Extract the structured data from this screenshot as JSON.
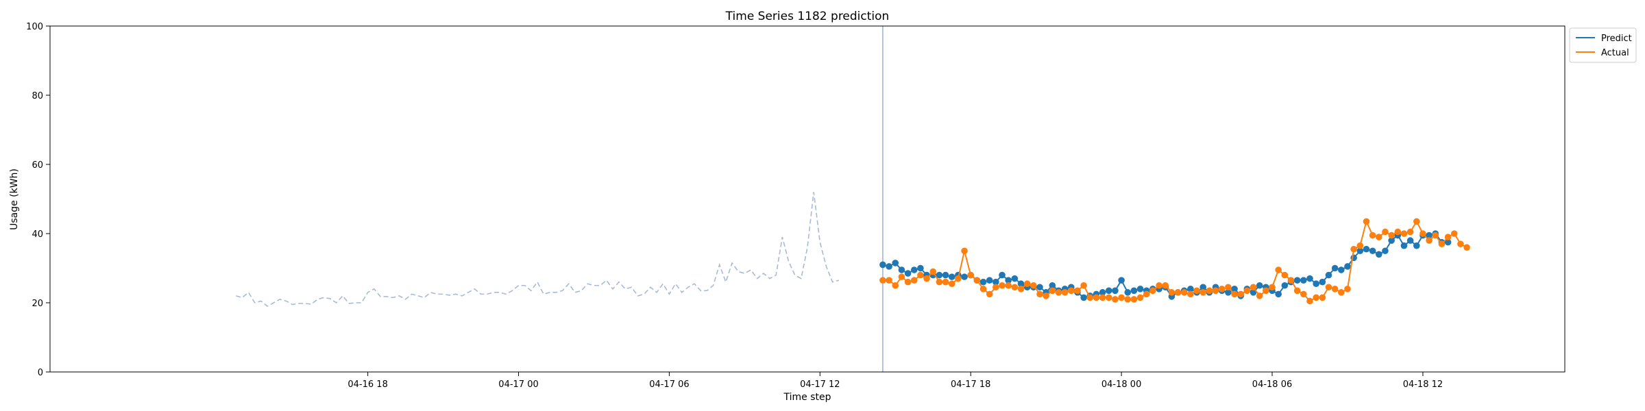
{
  "chart_data": {
    "type": "line",
    "title": "Time Series 1182 prediction",
    "xlabel": "Time step",
    "ylabel": "Usage (kWh)",
    "ylim": [
      0,
      100
    ],
    "yticks": [
      0,
      20,
      40,
      60,
      80,
      100
    ],
    "x_tick_labels": [
      "04-16 18",
      "04-17 00",
      "04-17 06",
      "04-17 12",
      "04-17 18",
      "04-18 00",
      "04-18 06",
      "04-18 12"
    ],
    "grid": false,
    "legend_position": "outside-top-right",
    "forecast_start": "2025-04-17T14:30",
    "history": {
      "x_start": "2025-04-16T12:45",
      "interval_minutes": 15,
      "color": "#a7bad6",
      "values": [
        22.0,
        21.5,
        23.0,
        20.0,
        20.5,
        19.0,
        20.0,
        21.0,
        20.5,
        19.5,
        19.8,
        19.8,
        19.6,
        21.0,
        21.5,
        21.2,
        20.0,
        22.0,
        19.8,
        20.0,
        20.0,
        23.0,
        24.0,
        21.8,
        21.8,
        21.5,
        22.0,
        21.0,
        22.5,
        22.0,
        21.5,
        23.0,
        22.5,
        22.5,
        22.2,
        22.5,
        22.0,
        23.0,
        24.0,
        22.5,
        22.5,
        23.0,
        23.0,
        22.5,
        23.5,
        25.0,
        25.0,
        23.5,
        26.0,
        22.5,
        23.0,
        23.0,
        23.5,
        25.5,
        23.0,
        23.5,
        25.5,
        25.0,
        25.0,
        26.5,
        24.0,
        26.0,
        24.0,
        24.5,
        22.0,
        22.5,
        24.5,
        23.0,
        25.5,
        22.5,
        25.5,
        23.0,
        24.5,
        25.5,
        23.5,
        23.5,
        25.0,
        31.0,
        26.0,
        31.5,
        29.0,
        28.5,
        29.5,
        27.0,
        28.5,
        27.0,
        28.0,
        39.0,
        32.0,
        28.0,
        27.0,
        36.0,
        52.0,
        37.5,
        30.5,
        26.0,
        26.5
      ]
    },
    "series": [
      {
        "name": "Predict",
        "color": "#1f77b4",
        "x_start": "2025-04-17T14:30",
        "interval_minutes": 15,
        "values": [
          31.0,
          30.5,
          31.5,
          29.5,
          28.5,
          29.5,
          30.0,
          28.0,
          28.0,
          28.0,
          28.0,
          27.5,
          28.0,
          27.5,
          28.0,
          26.5,
          26.0,
          26.5,
          26.0,
          28.0,
          26.5,
          27.0,
          25.5,
          24.5,
          24.5,
          24.5,
          23.0,
          25.0,
          23.5,
          24.0,
          24.5,
          23.0,
          21.5,
          22.0,
          22.5,
          23.0,
          23.5,
          23.5,
          26.5,
          23.0,
          23.5,
          24.0,
          23.5,
          24.0,
          24.0,
          24.5,
          21.8,
          23.0,
          23.5,
          24.0,
          23.0,
          24.5,
          23.0,
          24.5,
          23.5,
          23.0,
          24.0,
          22.0,
          24.0,
          23.0,
          25.0,
          24.5,
          23.5,
          22.5,
          25.0,
          26.0,
          26.5,
          26.5,
          27.0,
          25.5,
          26.0,
          28.0,
          30.0,
          29.5,
          30.5,
          33.0,
          35.0,
          35.5,
          35.0,
          34.0,
          35.0,
          38.0,
          39.5,
          36.5,
          38.0,
          36.5,
          39.5,
          39.5,
          40.0,
          37.5,
          37.5
        ]
      },
      {
        "name": "Actual",
        "color": "#ff7f0e",
        "x_start": "2025-04-17T14:30",
        "interval_minutes": 15,
        "values": [
          26.5,
          26.5,
          25.0,
          27.5,
          26.0,
          26.5,
          28.0,
          27.0,
          29.0,
          26.0,
          26.0,
          25.5,
          27.0,
          35.0,
          28.0,
          26.5,
          24.0,
          22.5,
          24.5,
          25.0,
          25.0,
          24.5,
          24.0,
          25.5,
          25.0,
          22.5,
          22.0,
          23.5,
          23.0,
          23.0,
          23.5,
          23.5,
          25.0,
          21.5,
          21.5,
          21.5,
          21.5,
          21.0,
          21.5,
          21.0,
          21.0,
          21.5,
          22.5,
          23.5,
          25.0,
          25.0,
          23.0,
          23.0,
          23.0,
          22.5,
          23.5,
          23.0,
          23.5,
          23.5,
          24.0,
          24.5,
          22.5,
          22.5,
          23.5,
          24.5,
          22.0,
          23.5,
          24.5,
          29.5,
          28.0,
          26.5,
          23.5,
          22.5,
          20.5,
          21.5,
          21.5,
          24.5,
          24.0,
          23.0,
          24.0,
          35.5,
          36.5,
          43.5,
          39.5,
          39.0,
          40.5,
          39.5,
          40.5,
          40.0,
          40.5,
          43.5,
          40.0,
          38.0,
          39.5,
          37.0,
          39.0,
          40.0,
          37.0,
          36.0
        ]
      }
    ]
  }
}
